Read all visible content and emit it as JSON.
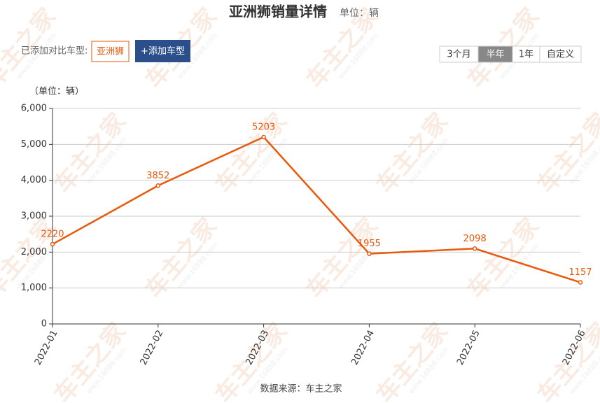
{
  "chart_data": {
    "type": "line",
    "title": "亚洲狮销量详情",
    "subtitle": "单位：辆",
    "y_axis_label": "（单位：辆）",
    "categories": [
      "2022-01",
      "2022-02",
      "2022-03",
      "2022-04",
      "2022-05",
      "2022-06"
    ],
    "series": [
      {
        "name": "亚洲狮",
        "color": "#e8590c",
        "values": [
          2220,
          3852,
          5203,
          1955,
          2098,
          1157
        ]
      }
    ],
    "ylim": [
      0,
      6000
    ],
    "yticks": [
      0,
      {
        "value": 1000,
        "label": "1,000"
      },
      {
        "value": 2000,
        "label": "2,000"
      },
      {
        "value": 3000,
        "label": "3,000"
      },
      {
        "value": 4000,
        "label": "4,000"
      },
      {
        "value": 5000,
        "label": "5,000"
      },
      {
        "value": 6000,
        "label": "6,000"
      }
    ],
    "grid": true,
    "source": "数据来源：车主之家"
  },
  "controls": {
    "compare_label": "已添加对比车型:",
    "compared_model": "亚洲狮",
    "add_button": "+添加车型",
    "tabs": [
      "3个月",
      "半年",
      "1年",
      "自定义"
    ],
    "active_tab": 1
  },
  "watermark": {
    "text": "车主之家",
    "url": "www.16888.com"
  }
}
